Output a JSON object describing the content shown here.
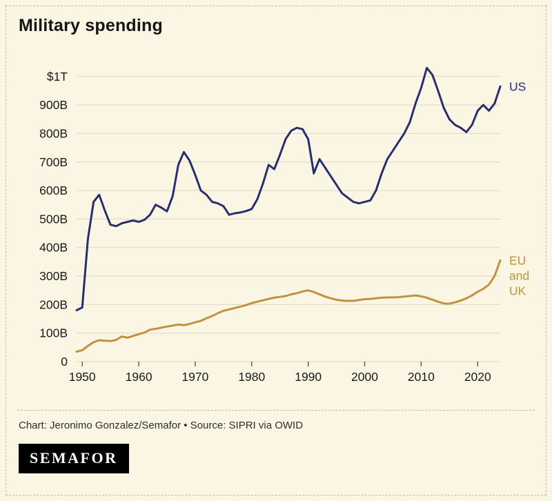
{
  "title": "Military spending",
  "credit": "Chart: Jeronimo Gonzalez/Semafor • Source: SIPRI via OWID",
  "logo_text": "SEMAFOR",
  "colors": {
    "background": "#FBF5E3",
    "us_line": "#262E6F",
    "eu_uk_line": "#C2913D",
    "grid": "#DCD6C3",
    "axis_text": "#1a1a1a",
    "tick_mark": "#4a4a4a",
    "dashed_border": "#BCB8A8"
  },
  "chart_data": {
    "type": "line",
    "title": "Military spending",
    "xlabel": "",
    "ylabel": "",
    "grid": "horizontal",
    "legend_position": "line-end-labels",
    "ylim": [
      0,
      1060
    ],
    "yticks": [
      0,
      100,
      200,
      300,
      400,
      500,
      600,
      700,
      800,
      900,
      1000
    ],
    "ytick_labels": [
      "0",
      "100B",
      "200B",
      "300B",
      "400B",
      "500B",
      "600B",
      "700B",
      "800B",
      "900B",
      "$1T"
    ],
    "xticks": [
      1950,
      1960,
      1970,
      1980,
      1990,
      2000,
      2010,
      2020
    ],
    "x": [
      1949,
      1950,
      1951,
      1952,
      1953,
      1954,
      1955,
      1956,
      1957,
      1958,
      1959,
      1960,
      1961,
      1962,
      1963,
      1964,
      1965,
      1966,
      1967,
      1968,
      1969,
      1970,
      1971,
      1972,
      1973,
      1974,
      1975,
      1976,
      1977,
      1978,
      1979,
      1980,
      1981,
      1982,
      1983,
      1984,
      1985,
      1986,
      1987,
      1988,
      1989,
      1990,
      1991,
      1992,
      1993,
      1994,
      1995,
      1996,
      1997,
      1998,
      1999,
      2000,
      2001,
      2002,
      2003,
      2004,
      2005,
      2006,
      2007,
      2008,
      2009,
      2010,
      2011,
      2012,
      2013,
      2014,
      2015,
      2016,
      2017,
      2018,
      2019,
      2020,
      2021,
      2022,
      2023,
      2024
    ],
    "series": [
      {
        "name": "US",
        "label": "US",
        "color": "#262E6F",
        "values": [
          180,
          190,
          430,
          560,
          585,
          530,
          480,
          475,
          485,
          490,
          495,
          490,
          497,
          515,
          550,
          540,
          527,
          580,
          690,
          735,
          705,
          655,
          600,
          585,
          560,
          555,
          545,
          515,
          520,
          523,
          528,
          535,
          570,
          625,
          690,
          675,
          725,
          780,
          810,
          820,
          815,
          780,
          660,
          710,
          680,
          650,
          620,
          590,
          575,
          560,
          555,
          560,
          565,
          600,
          660,
          710,
          740,
          770,
          800,
          840,
          905,
          960,
          1030,
          1005,
          950,
          890,
          850,
          830,
          820,
          805,
          830,
          880,
          900,
          880,
          905,
          965
        ]
      },
      {
        "name": "EU and UK",
        "label": "EU and UK",
        "label_lines": [
          "EU",
          "and",
          "UK"
        ],
        "color": "#C2913D",
        "values": [
          35,
          40,
          55,
          68,
          75,
          73,
          72,
          76,
          88,
          84,
          90,
          96,
          102,
          112,
          115,
          119,
          123,
          126,
          130,
          128,
          132,
          138,
          143,
          152,
          160,
          170,
          178,
          183,
          188,
          193,
          198,
          205,
          210,
          215,
          220,
          224,
          227,
          230,
          236,
          240,
          246,
          250,
          244,
          236,
          228,
          222,
          217,
          214,
          213,
          213,
          216,
          219,
          220,
          222,
          224,
          225,
          225,
          226,
          228,
          230,
          232,
          229,
          224,
          217,
          210,
          204,
          203,
          208,
          214,
          222,
          232,
          245,
          255,
          270,
          300,
          355
        ]
      }
    ]
  }
}
